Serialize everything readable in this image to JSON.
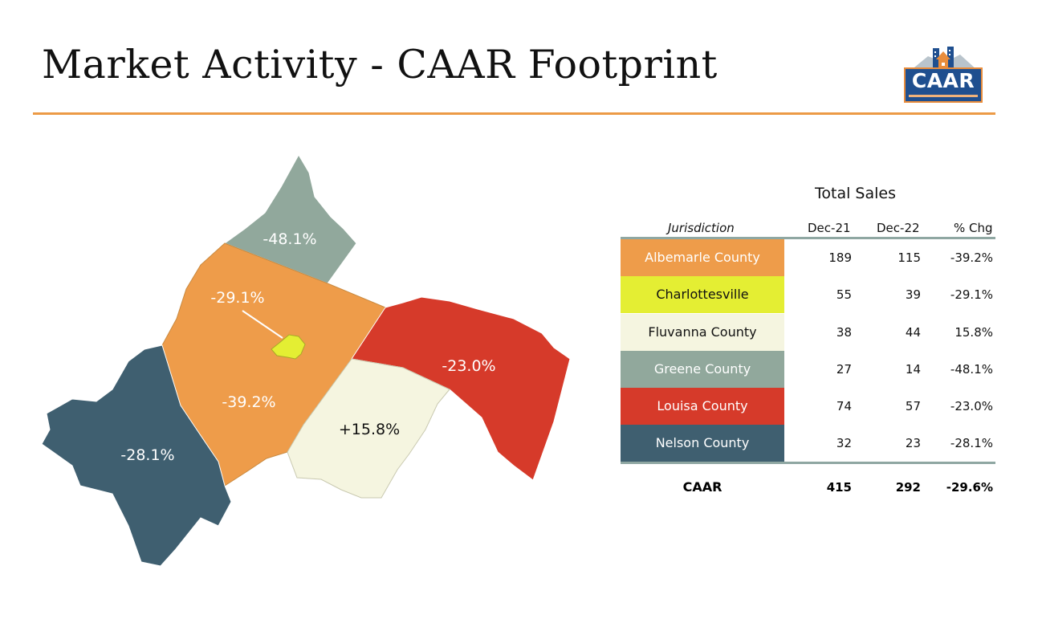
{
  "header": {
    "title": "Market Activity - CAAR Footprint"
  },
  "logo": {
    "text": "CAAR",
    "icon": "building-house-icon"
  },
  "map": {
    "regions": [
      {
        "id": "greene",
        "label": "-48.1%",
        "color": "#91a89c"
      },
      {
        "id": "albemarle",
        "label": "-29.1%",
        "color": "#ee9c4a"
      },
      {
        "id": "albemarle_change",
        "label": "-39.2%",
        "color": "#ee9c4a"
      },
      {
        "id": "charlottesville",
        "color": "#e4ee33"
      },
      {
        "id": "louisa",
        "label": "-23.0%",
        "color": "#d63a2a"
      },
      {
        "id": "fluvanna",
        "label": "+15.8%",
        "color": "#f5f5e0"
      },
      {
        "id": "nelson",
        "label": "-28.1%",
        "color": "#3f5f70"
      }
    ]
  },
  "table": {
    "title": "Total Sales",
    "headers": {
      "jurisdiction": "Jurisdiction",
      "dec21": "Dec-21",
      "dec22": "Dec-22",
      "chg": "% Chg"
    },
    "rows": [
      {
        "name": "Albemarle County",
        "dec21": "189",
        "dec22": "115",
        "chg": "-39.2%",
        "color": "#ee9c4a",
        "text_color": "#ffffff"
      },
      {
        "name": "Charlottesville",
        "dec21": "55",
        "dec22": "39",
        "chg": "-29.1%",
        "color": "#e4ee33",
        "text_color": "#111111"
      },
      {
        "name": "Fluvanna County",
        "dec21": "38",
        "dec22": "44",
        "chg": "15.8%",
        "color": "#f5f5e0",
        "text_color": "#111111"
      },
      {
        "name": "Greene County",
        "dec21": "27",
        "dec22": "14",
        "chg": "-48.1%",
        "color": "#91a89c",
        "text_color": "#ffffff"
      },
      {
        "name": "Louisa County",
        "dec21": "74",
        "dec22": "57",
        "chg": "-23.0%",
        "color": "#d63a2a",
        "text_color": "#ffffff"
      },
      {
        "name": "Nelson County",
        "dec21": "32",
        "dec22": "23",
        "chg": "-28.1%",
        "color": "#3f5f70",
        "text_color": "#ffffff"
      }
    ],
    "total": {
      "name": "CAAR",
      "dec21": "415",
      "dec22": "292",
      "chg": "-29.6%"
    }
  }
}
